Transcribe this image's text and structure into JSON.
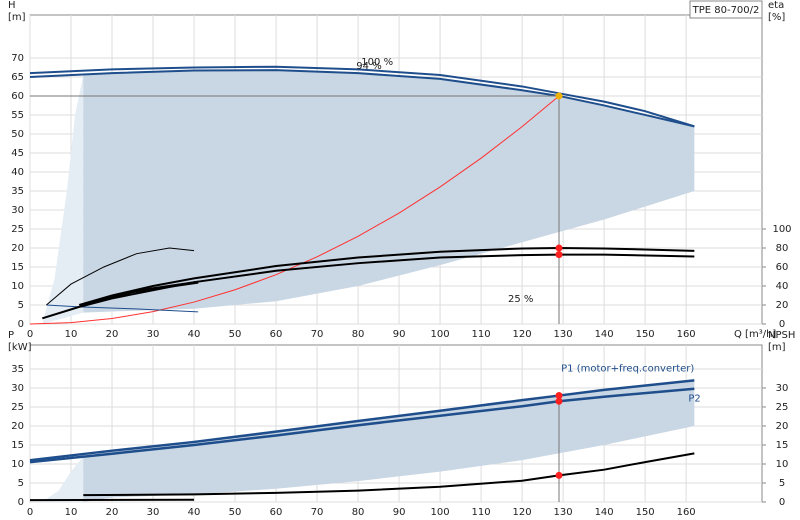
{
  "chart_data": [
    {
      "type": "line",
      "title": "TPE 80-700/2",
      "ylabel": "H",
      "yunit": "[m]",
      "y2label": "eta",
      "y2unit": "[%]",
      "xlabel": "Q [m³/h]",
      "xlim": [
        0,
        178.5
      ],
      "xticks": [
        0,
        10,
        20,
        30,
        40,
        50,
        60,
        70,
        80,
        90,
        100,
        110,
        120,
        130,
        140,
        150,
        160
      ],
      "ylim": [
        0,
        81.3
      ],
      "yticks": [
        0,
        5,
        10,
        15,
        20,
        25,
        30,
        35,
        40,
        45,
        50,
        55,
        60,
        65,
        70
      ],
      "y2lim": [
        0,
        325.2
      ],
      "y2ticks": [
        0,
        20,
        40,
        60,
        80,
        100
      ],
      "grid": true,
      "annotations": [
        "100 %",
        "94 %",
        "25 %"
      ],
      "series": [
        {
          "type": "area",
          "color": "#e4ecf4",
          "x": [
            3,
            6,
            9,
            11,
            13,
            13,
            3
          ],
          "values": [
            0,
            12,
            35,
            55,
            65.5,
            3,
            0
          ]
        },
        {
          "type": "area",
          "color": "#c9d6e3",
          "x": [
            13,
            20,
            40,
            60,
            80,
            100,
            120,
            140,
            162,
            162,
            140,
            120,
            100,
            80,
            60,
            40,
            20,
            13
          ],
          "values": [
            65.5,
            66,
            66.7,
            66.8,
            66,
            64.5,
            61.5,
            57.5,
            52,
            35,
            27.5,
            21.5,
            15.5,
            10,
            6,
            4,
            3.3,
            3
          ]
        },
        {
          "type": "line",
          "color": "#1f4e8c",
          "width": 2,
          "x": [
            0,
            10,
            20,
            40,
            60,
            80,
            100,
            120,
            130,
            140,
            150,
            162
          ],
          "values": [
            66,
            66.5,
            67,
            67.5,
            67.7,
            67,
            65.5,
            62.5,
            60.5,
            58.5,
            56,
            52
          ]
        },
        {
          "type": "line",
          "color": "#1f4e8c",
          "width": 2,
          "x": [
            0,
            20,
            40,
            60,
            80,
            100,
            120,
            129,
            140,
            150,
            162
          ],
          "values": [
            65,
            66,
            66.7,
            66.8,
            66,
            64.5,
            61.5,
            60,
            57.5,
            55,
            52
          ]
        },
        {
          "type": "line",
          "color": "#ff3030",
          "width": 1,
          "x": [
            0,
            10,
            20,
            30,
            40,
            50,
            60,
            70,
            80,
            90,
            100,
            110,
            120,
            129
          ],
          "values": [
            0,
            0.36,
            1.44,
            3.25,
            5.77,
            9.01,
            12.98,
            17.67,
            23.08,
            29.2,
            36.06,
            43.63,
            51.92,
            60
          ]
        },
        {
          "type": "line",
          "color": "#1f4e8c",
          "width": 1,
          "x": [
            4,
            12,
            25,
            41
          ],
          "values": [
            5,
            4.5,
            4,
            3.2
          ]
        },
        {
          "type": "line",
          "color": "#000000",
          "width": 1,
          "x": [
            4,
            10,
            18,
            26,
            34,
            40
          ],
          "values": [
            5,
            10.5,
            15,
            18.5,
            20,
            19.3
          ]
        },
        {
          "type": "line",
          "color": "#000000",
          "width": 2,
          "axis": "y2",
          "x": [
            12,
            20,
            30,
            40,
            60,
            80,
            100,
            120,
            129,
            140,
            162
          ],
          "values": [
            20,
            30,
            40,
            48,
            61,
            70,
            76,
            79.5,
            80,
            79.5,
            77
          ]
        },
        {
          "type": "line",
          "color": "#000000",
          "width": 2,
          "axis": "y2",
          "x": [
            3,
            12,
            20,
            40,
            60,
            80,
            100,
            120,
            129,
            140,
            162
          ],
          "values": [
            6,
            18,
            27,
            44,
            56,
            64,
            70,
            72.5,
            73,
            73,
            71
          ]
        },
        {
          "type": "line",
          "color": "#000000",
          "width": 3,
          "axis": "y2",
          "x": [
            13,
            25,
            41
          ],
          "values": [
            20,
            34,
            44
          ]
        },
        {
          "type": "scatter",
          "color": "#ff2020",
          "axis": "y2",
          "x": [
            129,
            129
          ],
          "values": [
            80,
            73
          ]
        },
        {
          "type": "scatter",
          "color": "#f0b000",
          "guides": true,
          "x": [
            129
          ],
          "values": [
            60
          ]
        }
      ]
    },
    {
      "type": "line",
      "ylabel": "P",
      "yunit": "[kW]",
      "y2label": "NPSH",
      "y2unit": "[m]",
      "xlim": [
        0,
        178.5
      ],
      "xticks": [
        0,
        10,
        20,
        30,
        40,
        50,
        60,
        70,
        80,
        90,
        100,
        110,
        120,
        130,
        140,
        150,
        160
      ],
      "ylim": [
        0,
        41.3
      ],
      "yticks": [
        0,
        5,
        10,
        15,
        20,
        25,
        30,
        35
      ],
      "y2lim": [
        0,
        41.3
      ],
      "y2ticks": [
        0,
        5,
        10,
        15,
        20,
        25,
        30
      ],
      "grid": true,
      "series": [
        {
          "type": "area",
          "color": "#e4ecf4",
          "x": [
            3,
            7,
            10,
            13,
            13,
            3
          ],
          "values": [
            0,
            3,
            8,
            12,
            0,
            0
          ]
        },
        {
          "type": "area",
          "color": "#c9d6e3",
          "x": [
            13,
            20,
            40,
            60,
            80,
            100,
            120,
            140,
            162,
            162,
            140,
            120,
            100,
            80,
            60,
            40,
            20,
            13
          ],
          "values": [
            12,
            13.5,
            15.8,
            18.5,
            21.3,
            24,
            26.8,
            29.5,
            32,
            20,
            15,
            11,
            8,
            5.5,
            3.5,
            2,
            1.2,
            0
          ]
        },
        {
          "type": "line",
          "name": "P1 (motor+freq.converter)",
          "color": "#1f4e8c",
          "width": 2.5,
          "x": [
            0,
            20,
            40,
            60,
            80,
            100,
            120,
            129,
            140,
            162
          ],
          "values": [
            11,
            13.5,
            15.8,
            18.5,
            21.3,
            24,
            26.8,
            28,
            29.5,
            32
          ]
        },
        {
          "type": "line",
          "name": "P2",
          "color": "#1f4e8c",
          "width": 2.5,
          "x": [
            0,
            20,
            40,
            60,
            80,
            100,
            120,
            129,
            140,
            162
          ],
          "values": [
            10.5,
            12.7,
            15,
            17.5,
            20.2,
            22.7,
            25.2,
            26.5,
            27.7,
            29.8
          ]
        },
        {
          "type": "line",
          "color": "#000000",
          "width": 2,
          "axis": "y2",
          "x": [
            13,
            40,
            60,
            80,
            100,
            120,
            129,
            140,
            150,
            162
          ],
          "values": [
            1.8,
            2,
            2.4,
            3,
            4,
            5.6,
            7,
            8.5,
            10.5,
            12.8
          ]
        },
        {
          "type": "line",
          "color": "#000000",
          "width": 2,
          "axis": "y2",
          "x": [
            0,
            40
          ],
          "values": [
            0.5,
            0.6
          ]
        },
        {
          "type": "scatter",
          "color": "#ff2020",
          "guides": true,
          "x": [
            129,
            129
          ],
          "values": [
            28,
            26.5
          ]
        },
        {
          "type": "scatter",
          "color": "#ff2020",
          "axis": "y2",
          "x": [
            129
          ],
          "values": [
            7
          ]
        }
      ]
    }
  ]
}
